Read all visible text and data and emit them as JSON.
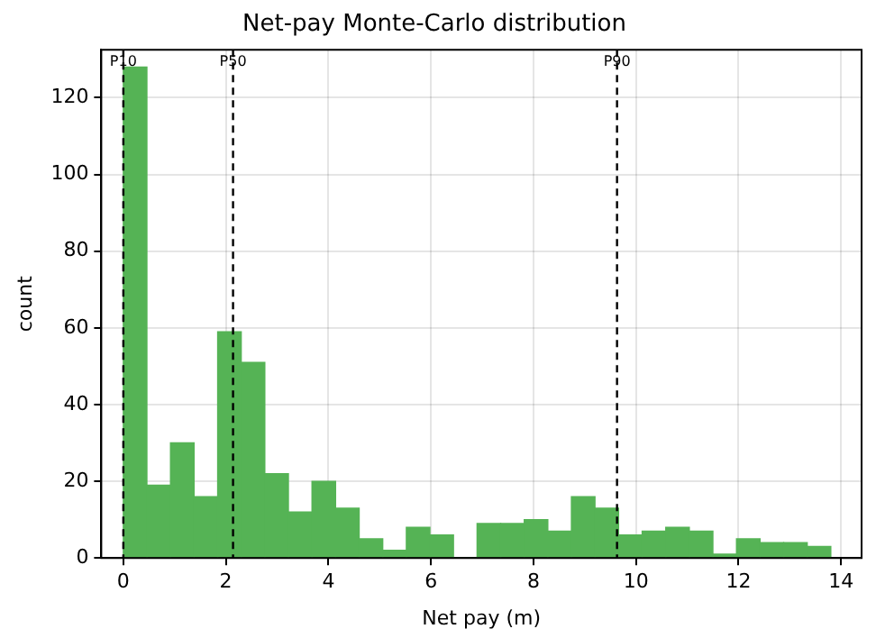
{
  "chart_data": {
    "type": "histogram",
    "title": "Net-pay Monte-Carlo distribution",
    "xlabel": "Net pay (m)",
    "ylabel": "count",
    "bins": [
      0,
      0.46,
      0.92,
      1.38,
      1.84,
      2.3,
      2.76,
      3.22,
      3.68,
      4.14,
      4.6,
      5.06,
      5.52,
      5.98,
      6.44,
      6.9,
      7.36,
      7.82,
      8.28,
      8.74,
      9.2,
      9.66,
      10.12,
      10.58,
      11.04,
      11.5,
      11.96,
      12.42,
      12.88,
      13.34,
      13.8
    ],
    "values": [
      128,
      19,
      30,
      16,
      59,
      51,
      22,
      12,
      20,
      13,
      5,
      2,
      8,
      6,
      0,
      9,
      9,
      10,
      7,
      16,
      13,
      6,
      7,
      8,
      7,
      1,
      5,
      4,
      4,
      3
    ],
    "color": "#55b355",
    "xlim": [
      -0.43,
      14.4
    ],
    "xticks": [
      0,
      2,
      4,
      6,
      8,
      10,
      12,
      14
    ],
    "ylim": [
      0,
      132.5
    ],
    "yticks": [
      0,
      20,
      40,
      60,
      80,
      100,
      120
    ],
    "grid": true,
    "ref_lines": [
      {
        "axis": "x",
        "value": 0,
        "label": "P10",
        "color": "#000000",
        "line_style": "dashed"
      },
      {
        "axis": "x",
        "value": 2.14,
        "label": "P50",
        "color": "#000000",
        "line_style": "dashed"
      },
      {
        "axis": "x",
        "value": 9.63,
        "label": "P90",
        "color": "#000000",
        "line_style": "dashed"
      }
    ]
  }
}
